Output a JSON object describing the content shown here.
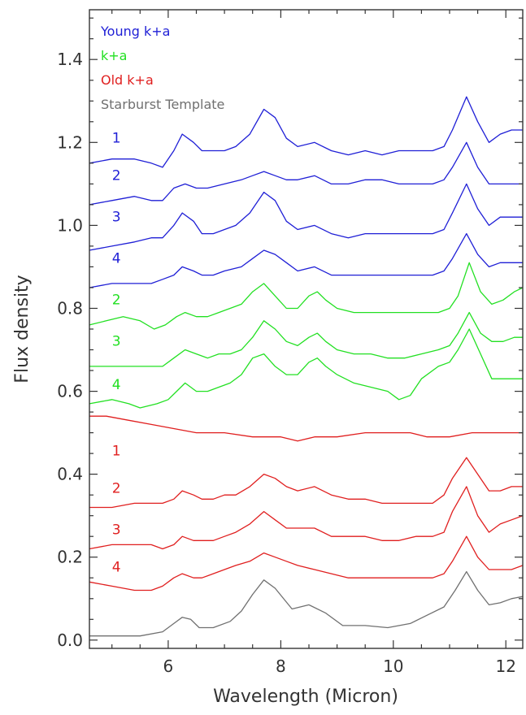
{
  "chart_data": {
    "type": "line",
    "title": "",
    "xlabel": "Wavelength (Micron)",
    "ylabel": "Flux density",
    "xlim": [
      4.6,
      12.3
    ],
    "ylim": [
      -0.02,
      1.52
    ],
    "xticks": [
      6,
      8,
      10,
      12
    ],
    "xtick_labels": [
      "6",
      "8",
      "10",
      "12"
    ],
    "yticks": [
      0.0,
      0.2,
      0.4,
      0.6,
      0.8,
      1.0,
      1.2,
      1.4
    ],
    "ytick_labels": [
      "0.0",
      "0.2",
      "0.4",
      "0.6",
      "0.8",
      "1.0",
      "1.2",
      "1.4"
    ],
    "grid": false,
    "legend_position": "top-left",
    "colors": {
      "young": "#1f1fd6",
      "ka": "#22e022",
      "old": "#e01f1f",
      "template": "#707070"
    },
    "legend": [
      {
        "label": "Young k+a",
        "color": "#1f1fd6"
      },
      {
        "label": "k+a",
        "color": "#22e022"
      },
      {
        "label": "Old k+a",
        "color": "#e01f1f"
      },
      {
        "label": "Starburst Template",
        "color": "#707070"
      }
    ],
    "series": [
      {
        "group": "young",
        "label": "1",
        "label_pos": [
          5.0,
          1.2
        ],
        "color": "#1f1fd6",
        "x": [
          4.6,
          5.0,
          5.4,
          5.7,
          5.9,
          6.1,
          6.25,
          6.45,
          6.6,
          6.8,
          7.0,
          7.2,
          7.45,
          7.7,
          7.9,
          8.1,
          8.3,
          8.6,
          8.9,
          9.2,
          9.5,
          9.8,
          10.1,
          10.4,
          10.7,
          10.9,
          11.05,
          11.3,
          11.5,
          11.7,
          11.9,
          12.1,
          12.3
        ],
        "y": [
          1.15,
          1.16,
          1.16,
          1.15,
          1.14,
          1.18,
          1.22,
          1.2,
          1.18,
          1.18,
          1.18,
          1.19,
          1.22,
          1.28,
          1.26,
          1.21,
          1.19,
          1.2,
          1.18,
          1.17,
          1.18,
          1.17,
          1.18,
          1.18,
          1.18,
          1.19,
          1.23,
          1.31,
          1.25,
          1.2,
          1.22,
          1.23,
          1.23
        ]
      },
      {
        "group": "young",
        "label": "2",
        "label_pos": [
          5.0,
          1.11
        ],
        "color": "#1f1fd6",
        "x": [
          4.6,
          5.0,
          5.4,
          5.7,
          5.9,
          6.1,
          6.3,
          6.5,
          6.7,
          7.0,
          7.3,
          7.5,
          7.7,
          7.9,
          8.1,
          8.3,
          8.6,
          8.9,
          9.2,
          9.5,
          9.8,
          10.1,
          10.4,
          10.7,
          10.9,
          11.05,
          11.3,
          11.5,
          11.7,
          11.9,
          12.1,
          12.3
        ],
        "y": [
          1.05,
          1.06,
          1.07,
          1.06,
          1.06,
          1.09,
          1.1,
          1.09,
          1.09,
          1.1,
          1.11,
          1.12,
          1.13,
          1.12,
          1.11,
          1.11,
          1.12,
          1.1,
          1.1,
          1.11,
          1.11,
          1.1,
          1.1,
          1.1,
          1.11,
          1.14,
          1.2,
          1.14,
          1.1,
          1.1,
          1.1,
          1.1
        ]
      },
      {
        "group": "young",
        "label": "3",
        "label_pos": [
          5.0,
          1.01
        ],
        "color": "#1f1fd6",
        "x": [
          4.6,
          5.0,
          5.4,
          5.7,
          5.9,
          6.1,
          6.25,
          6.45,
          6.6,
          6.8,
          7.0,
          7.2,
          7.45,
          7.7,
          7.9,
          8.1,
          8.3,
          8.6,
          8.9,
          9.2,
          9.5,
          9.8,
          10.1,
          10.4,
          10.7,
          10.9,
          11.05,
          11.3,
          11.5,
          11.7,
          11.9,
          12.1,
          12.3
        ],
        "y": [
          0.94,
          0.95,
          0.96,
          0.97,
          0.97,
          1.0,
          1.03,
          1.01,
          0.98,
          0.98,
          0.99,
          1.0,
          1.03,
          1.08,
          1.06,
          1.01,
          0.99,
          1.0,
          0.98,
          0.97,
          0.98,
          0.98,
          0.98,
          0.98,
          0.98,
          0.99,
          1.03,
          1.1,
          1.04,
          1.0,
          1.02,
          1.02,
          1.02
        ]
      },
      {
        "group": "young",
        "label": "4",
        "label_pos": [
          5.0,
          0.91
        ],
        "color": "#1f1fd6",
        "x": [
          4.6,
          5.0,
          5.4,
          5.7,
          5.9,
          6.1,
          6.25,
          6.45,
          6.6,
          6.8,
          7.0,
          7.3,
          7.5,
          7.7,
          7.9,
          8.1,
          8.3,
          8.6,
          8.9,
          9.2,
          9.5,
          9.8,
          10.1,
          10.4,
          10.7,
          10.9,
          11.05,
          11.3,
          11.5,
          11.7,
          11.9,
          12.1,
          12.3
        ],
        "y": [
          0.85,
          0.86,
          0.86,
          0.86,
          0.87,
          0.88,
          0.9,
          0.89,
          0.88,
          0.88,
          0.89,
          0.9,
          0.92,
          0.94,
          0.93,
          0.91,
          0.89,
          0.9,
          0.88,
          0.88,
          0.88,
          0.88,
          0.88,
          0.88,
          0.88,
          0.89,
          0.92,
          0.98,
          0.93,
          0.9,
          0.91,
          0.91,
          0.91
        ]
      },
      {
        "group": "ka",
        "label": "2",
        "label_pos": [
          5.0,
          0.81
        ],
        "color": "#22e022",
        "x": [
          4.6,
          4.9,
          5.2,
          5.5,
          5.75,
          5.95,
          6.15,
          6.3,
          6.5,
          6.7,
          6.9,
          7.1,
          7.3,
          7.5,
          7.7,
          7.9,
          8.1,
          8.3,
          8.5,
          8.65,
          8.8,
          9.0,
          9.3,
          9.6,
          9.9,
          10.2,
          10.5,
          10.8,
          11.0,
          11.15,
          11.35,
          11.55,
          11.75,
          11.95,
          12.15,
          12.3
        ],
        "y": [
          0.76,
          0.77,
          0.78,
          0.77,
          0.75,
          0.76,
          0.78,
          0.79,
          0.78,
          0.78,
          0.79,
          0.8,
          0.81,
          0.84,
          0.86,
          0.83,
          0.8,
          0.8,
          0.83,
          0.84,
          0.82,
          0.8,
          0.79,
          0.79,
          0.79,
          0.79,
          0.79,
          0.79,
          0.8,
          0.83,
          0.91,
          0.84,
          0.81,
          0.82,
          0.84,
          0.85
        ]
      },
      {
        "group": "ka",
        "label": "3",
        "label_pos": [
          5.0,
          0.71
        ],
        "color": "#22e022",
        "x": [
          4.6,
          5.0,
          5.4,
          5.7,
          5.9,
          6.1,
          6.3,
          6.5,
          6.7,
          6.9,
          7.1,
          7.3,
          7.5,
          7.7,
          7.9,
          8.1,
          8.3,
          8.5,
          8.65,
          8.8,
          9.0,
          9.3,
          9.6,
          9.9,
          10.2,
          10.5,
          10.8,
          11.0,
          11.15,
          11.35,
          11.55,
          11.75,
          11.95,
          12.15,
          12.3
        ],
        "y": [
          0.66,
          0.66,
          0.66,
          0.66,
          0.66,
          0.68,
          0.7,
          0.69,
          0.68,
          0.69,
          0.69,
          0.7,
          0.73,
          0.77,
          0.75,
          0.72,
          0.71,
          0.73,
          0.74,
          0.72,
          0.7,
          0.69,
          0.69,
          0.68,
          0.68,
          0.69,
          0.7,
          0.71,
          0.74,
          0.79,
          0.74,
          0.72,
          0.72,
          0.73,
          0.73
        ]
      },
      {
        "group": "ka",
        "label": "4",
        "label_pos": [
          5.0,
          0.605
        ],
        "color": "#22e022",
        "x": [
          4.6,
          5.0,
          5.3,
          5.5,
          5.8,
          6.0,
          6.15,
          6.3,
          6.5,
          6.7,
          6.9,
          7.1,
          7.3,
          7.5,
          7.7,
          7.9,
          8.1,
          8.3,
          8.5,
          8.65,
          8.8,
          9.0,
          9.3,
          9.6,
          9.9,
          10.1,
          10.3,
          10.5,
          10.8,
          11.0,
          11.15,
          11.35,
          11.55,
          11.75,
          12.0,
          12.3
        ],
        "y": [
          0.57,
          0.58,
          0.57,
          0.56,
          0.57,
          0.58,
          0.6,
          0.62,
          0.6,
          0.6,
          0.61,
          0.62,
          0.64,
          0.68,
          0.69,
          0.66,
          0.64,
          0.64,
          0.67,
          0.68,
          0.66,
          0.64,
          0.62,
          0.61,
          0.6,
          0.58,
          0.59,
          0.63,
          0.66,
          0.67,
          0.7,
          0.75,
          0.69,
          0.63,
          0.63,
          0.63
        ]
      },
      {
        "group": "old",
        "label": "1",
        "label_pos": [
          5.0,
          0.445
        ],
        "color": "#e01f1f",
        "x": [
          4.6,
          4.9,
          5.3,
          5.7,
          6.1,
          6.5,
          7.0,
          7.5,
          8.0,
          8.3,
          8.6,
          9.0,
          9.5,
          10.0,
          10.3,
          10.6,
          11.0,
          11.4,
          11.8,
          12.1,
          12.3
        ],
        "y": [
          0.54,
          0.54,
          0.53,
          0.52,
          0.51,
          0.5,
          0.5,
          0.49,
          0.49,
          0.48,
          0.49,
          0.49,
          0.5,
          0.5,
          0.5,
          0.49,
          0.49,
          0.5,
          0.5,
          0.5,
          0.5
        ]
      },
      {
        "group": "old",
        "label": "2",
        "label_pos": [
          5.0,
          0.355
        ],
        "color": "#e01f1f",
        "x": [
          4.6,
          5.0,
          5.4,
          5.7,
          5.9,
          6.1,
          6.25,
          6.45,
          6.6,
          6.8,
          7.0,
          7.2,
          7.45,
          7.7,
          7.9,
          8.1,
          8.3,
          8.6,
          8.9,
          9.2,
          9.5,
          9.8,
          10.1,
          10.4,
          10.7,
          10.9,
          11.05,
          11.3,
          11.5,
          11.7,
          11.9,
          12.1,
          12.3
        ],
        "y": [
          0.32,
          0.32,
          0.33,
          0.33,
          0.33,
          0.34,
          0.36,
          0.35,
          0.34,
          0.34,
          0.35,
          0.35,
          0.37,
          0.4,
          0.39,
          0.37,
          0.36,
          0.37,
          0.35,
          0.34,
          0.34,
          0.33,
          0.33,
          0.33,
          0.33,
          0.35,
          0.39,
          0.44,
          0.4,
          0.36,
          0.36,
          0.37,
          0.37
        ]
      },
      {
        "group": "old",
        "label": "3",
        "label_pos": [
          5.0,
          0.255
        ],
        "color": "#e01f1f",
        "x": [
          4.6,
          5.0,
          5.4,
          5.7,
          5.9,
          6.1,
          6.25,
          6.45,
          6.6,
          6.8,
          7.0,
          7.2,
          7.45,
          7.7,
          7.9,
          8.1,
          8.3,
          8.6,
          8.9,
          9.2,
          9.5,
          9.8,
          10.1,
          10.4,
          10.7,
          10.9,
          11.05,
          11.3,
          11.5,
          11.7,
          11.9,
          12.1,
          12.3
        ],
        "y": [
          0.22,
          0.23,
          0.23,
          0.23,
          0.22,
          0.23,
          0.25,
          0.24,
          0.24,
          0.24,
          0.25,
          0.26,
          0.28,
          0.31,
          0.29,
          0.27,
          0.27,
          0.27,
          0.25,
          0.25,
          0.25,
          0.24,
          0.24,
          0.25,
          0.25,
          0.26,
          0.31,
          0.37,
          0.3,
          0.26,
          0.28,
          0.29,
          0.3
        ]
      },
      {
        "group": "old",
        "label": "4",
        "label_pos": [
          5.0,
          0.165
        ],
        "color": "#e01f1f",
        "x": [
          4.6,
          5.0,
          5.4,
          5.7,
          5.9,
          6.1,
          6.25,
          6.45,
          6.6,
          6.8,
          7.0,
          7.2,
          7.45,
          7.7,
          7.9,
          8.1,
          8.3,
          8.6,
          8.9,
          9.2,
          9.5,
          9.8,
          10.1,
          10.4,
          10.7,
          10.9,
          11.05,
          11.3,
          11.5,
          11.7,
          11.9,
          12.1,
          12.3
        ],
        "y": [
          0.14,
          0.13,
          0.12,
          0.12,
          0.13,
          0.15,
          0.16,
          0.15,
          0.15,
          0.16,
          0.17,
          0.18,
          0.19,
          0.21,
          0.2,
          0.19,
          0.18,
          0.17,
          0.16,
          0.15,
          0.15,
          0.15,
          0.15,
          0.15,
          0.15,
          0.16,
          0.19,
          0.25,
          0.2,
          0.17,
          0.17,
          0.17,
          0.18
        ]
      },
      {
        "group": "template",
        "label": "",
        "label_pos": null,
        "color": "#707070",
        "x": [
          4.6,
          5.0,
          5.5,
          5.9,
          6.1,
          6.25,
          6.4,
          6.55,
          6.8,
          7.1,
          7.3,
          7.5,
          7.7,
          7.9,
          8.2,
          8.5,
          8.8,
          9.1,
          9.5,
          9.9,
          10.3,
          10.6,
          10.9,
          11.1,
          11.3,
          11.5,
          11.7,
          11.9,
          12.1,
          12.3
        ],
        "y": [
          0.01,
          0.01,
          0.01,
          0.02,
          0.04,
          0.055,
          0.05,
          0.03,
          0.03,
          0.045,
          0.07,
          0.11,
          0.145,
          0.125,
          0.075,
          0.085,
          0.065,
          0.035,
          0.035,
          0.03,
          0.04,
          0.06,
          0.08,
          0.12,
          0.165,
          0.12,
          0.085,
          0.09,
          0.1,
          0.105
        ]
      }
    ]
  }
}
